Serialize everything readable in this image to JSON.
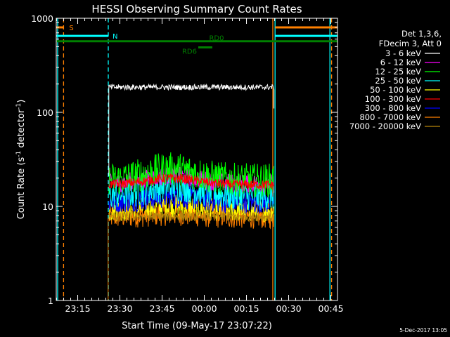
{
  "chart_data": {
    "type": "line",
    "title": "HESSI Observing Summary Count Rates",
    "xlabel": "Start Time (09-May-17 23:07:22)",
    "ylabel_main": "Count Rate (s",
    "ylabel_sup1": "-1",
    "ylabel_mid": " detector",
    "ylabel_sup2": "-1",
    "ylabel_end": ")",
    "y_scale": "log",
    "ylim": [
      1,
      1000
    ],
    "xlim_minutes": [
      0,
      100
    ],
    "x_ticks": [
      {
        "label": "23:15",
        "t": 7.63
      },
      {
        "label": "23:30",
        "t": 22.63
      },
      {
        "label": "23:45",
        "t": 37.63
      },
      {
        "label": "00:00",
        "t": 52.63
      },
      {
        "label": "00:15",
        "t": 67.63
      },
      {
        "label": "00:30",
        "t": 82.63
      },
      {
        "label": "00:45",
        "t": 97.63
      }
    ],
    "y_ticks": [
      {
        "label": "1",
        "value": 1
      },
      {
        "label": "10",
        "value": 10
      },
      {
        "label": "100",
        "value": 100
      },
      {
        "label": "1000",
        "value": 1000
      }
    ],
    "legend_header": [
      "Det 1,3,6,",
      "FDecim 3, Att 0"
    ],
    "legend_placement": "right",
    "series": [
      {
        "name": "3 - 6 keV",
        "color": "#ffffff",
        "level": 185,
        "jitter": 0.03,
        "hump": 0.0
      },
      {
        "name": "6 - 12 keV",
        "color": "#ff00ff",
        "level": 17.5,
        "jitter": 0.1,
        "hump": 0.08
      },
      {
        "name": "12 - 25 keV",
        "color": "#00ff00",
        "level": 19,
        "jitter": 0.18,
        "hump": 0.12
      },
      {
        "name": "25 - 50 keV",
        "color": "#00ffff",
        "level": 13,
        "jitter": 0.16,
        "hump": 0.1
      },
      {
        "name": "50 - 100 keV",
        "color": "#ffff00",
        "level": 9,
        "jitter": 0.12,
        "hump": 0.05
      },
      {
        "name": "100 - 300 keV",
        "color": "#ff0000",
        "level": 17,
        "jitter": 0.05,
        "hump": 0.07
      },
      {
        "name": "300 - 800 keV",
        "color": "#0000ff",
        "level": 11,
        "jitter": 0.12,
        "hump": 0.06
      },
      {
        "name": "800 - 7000 keV",
        "color": "#ff8000",
        "level": 7.8,
        "jitter": 0.13,
        "hump": 0.03
      },
      {
        "name": "7000 - 20000 keV",
        "color": "#b8860b",
        "level": 7.8,
        "jitter": 0.05,
        "hump": 0.0
      }
    ],
    "data_window_minutes": [
      18.7,
      77.4
    ],
    "flag_bars": [
      {
        "label": "S",
        "color": "#ff8000",
        "segments": [
          [
            0,
            2.6
          ],
          [
            77.8,
            100
          ]
        ],
        "level": 800
      },
      {
        "label": "N",
        "color": "#00ffff",
        "segments": [
          [
            0,
            18.5
          ],
          [
            77.8,
            100
          ]
        ],
        "level": 650
      },
      {
        "label": "RD0",
        "color": "#008000",
        "segments": [
          [
            0,
            100
          ]
        ],
        "level": 570
      },
      {
        "label": "RD6",
        "color": "#008000",
        "segments": [
          [
            50.5,
            55.5
          ]
        ],
        "level": 490
      }
    ],
    "vertical_lines": [
      {
        "t": 0.5,
        "color": "#00ffff",
        "dash": false
      },
      {
        "t": 2.6,
        "color": "#ff8000",
        "dash": true
      },
      {
        "t": 18.5,
        "color": "#00ffff",
        "dash": true
      },
      {
        "t": 77.0,
        "color": "#ff8000",
        "dash": false
      },
      {
        "t": 77.8,
        "color": "#00ffff",
        "dash": false
      },
      {
        "t": 97.3,
        "color": "#00ffff",
        "dash": false
      },
      {
        "t": 97.9,
        "color": "#ff8000",
        "dash": true
      }
    ]
  },
  "footer": {
    "timestamp": "5-Dec-2017 13:05"
  }
}
